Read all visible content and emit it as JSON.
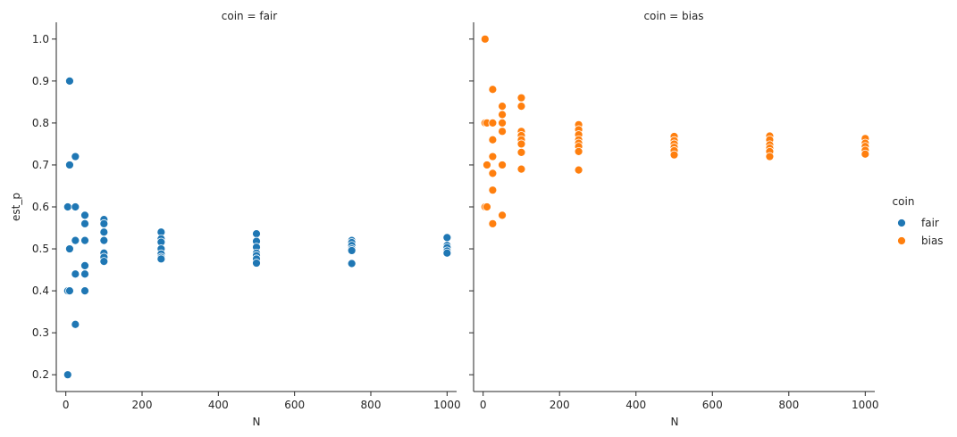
{
  "chart_data": {
    "type": "scatter",
    "x_label": "N",
    "y_label": "est_p",
    "xlim": [
      -25,
      1025
    ],
    "ylim": [
      0.16,
      1.04
    ],
    "x_ticks": [
      0,
      200,
      400,
      600,
      800,
      1000
    ],
    "y_ticks": [
      0.2,
      0.3,
      0.4,
      0.5,
      0.6,
      0.7,
      0.8,
      0.9,
      1.0
    ],
    "x_tick_labels": [
      "0",
      "200",
      "400",
      "600",
      "800",
      "1000"
    ],
    "y_tick_labels": [
      "0.2",
      "0.3",
      "0.4",
      "0.5",
      "0.6",
      "0.7",
      "0.8",
      "0.9",
      "1.0"
    ],
    "grid": false,
    "legend": {
      "title": "coin",
      "placement": "right",
      "entries": [
        {
          "label": "fair",
          "color": "#1f77b4"
        },
        {
          "label": "bias",
          "color": "#ff7f0e"
        }
      ]
    },
    "panels": [
      {
        "title": "coin = fair",
        "series": "fair",
        "color": "#1f77b4",
        "points": [
          [
            5,
            0.2
          ],
          [
            5,
            0.4
          ],
          [
            5,
            0.6
          ],
          [
            5,
            0.4
          ],
          [
            10,
            0.9
          ],
          [
            10,
            0.7
          ],
          [
            10,
            0.5
          ],
          [
            10,
            0.4
          ],
          [
            25,
            0.72
          ],
          [
            25,
            0.6
          ],
          [
            25,
            0.52
          ],
          [
            25,
            0.44
          ],
          [
            25,
            0.32
          ],
          [
            50,
            0.58
          ],
          [
            50,
            0.56
          ],
          [
            50,
            0.52
          ],
          [
            50,
            0.46
          ],
          [
            50,
            0.44
          ],
          [
            50,
            0.4
          ],
          [
            100,
            0.57
          ],
          [
            100,
            0.56
          ],
          [
            100,
            0.54
          ],
          [
            100,
            0.52
          ],
          [
            100,
            0.49
          ],
          [
            100,
            0.48
          ],
          [
            100,
            0.47
          ],
          [
            250,
            0.54
          ],
          [
            250,
            0.524
          ],
          [
            250,
            0.516
          ],
          [
            250,
            0.5
          ],
          [
            250,
            0.488
          ],
          [
            250,
            0.48
          ],
          [
            250,
            0.476
          ],
          [
            500,
            0.536
          ],
          [
            500,
            0.518
          ],
          [
            500,
            0.504
          ],
          [
            500,
            0.49
          ],
          [
            500,
            0.484
          ],
          [
            500,
            0.476
          ],
          [
            500,
            0.466
          ],
          [
            750,
            0.52
          ],
          [
            750,
            0.515
          ],
          [
            750,
            0.508
          ],
          [
            750,
            0.5
          ],
          [
            750,
            0.496
          ],
          [
            750,
            0.465
          ],
          [
            1000,
            0.527
          ],
          [
            1000,
            0.508
          ],
          [
            1000,
            0.503
          ],
          [
            1000,
            0.495
          ],
          [
            1000,
            0.49
          ]
        ]
      },
      {
        "title": "coin = bias",
        "series": "bias",
        "color": "#ff7f0e",
        "points": [
          [
            5,
            1.0
          ],
          [
            5,
            0.8
          ],
          [
            5,
            0.6
          ],
          [
            10,
            0.8
          ],
          [
            10,
            0.7
          ],
          [
            10,
            0.6
          ],
          [
            25,
            0.88
          ],
          [
            25,
            0.8
          ],
          [
            25,
            0.76
          ],
          [
            25,
            0.72
          ],
          [
            25,
            0.68
          ],
          [
            25,
            0.64
          ],
          [
            25,
            0.56
          ],
          [
            50,
            0.84
          ],
          [
            50,
            0.82
          ],
          [
            50,
            0.8
          ],
          [
            50,
            0.78
          ],
          [
            50,
            0.7
          ],
          [
            50,
            0.58
          ],
          [
            100,
            0.86
          ],
          [
            100,
            0.84
          ],
          [
            100,
            0.78
          ],
          [
            100,
            0.77
          ],
          [
            100,
            0.76
          ],
          [
            100,
            0.75
          ],
          [
            100,
            0.73
          ],
          [
            100,
            0.69
          ],
          [
            250,
            0.796
          ],
          [
            250,
            0.784
          ],
          [
            250,
            0.772
          ],
          [
            250,
            0.76
          ],
          [
            250,
            0.752
          ],
          [
            250,
            0.744
          ],
          [
            250,
            0.732
          ],
          [
            250,
            0.688
          ],
          [
            500,
            0.768
          ],
          [
            500,
            0.758
          ],
          [
            500,
            0.75
          ],
          [
            500,
            0.742
          ],
          [
            500,
            0.734
          ],
          [
            500,
            0.724
          ],
          [
            750,
            0.769
          ],
          [
            750,
            0.76
          ],
          [
            750,
            0.748
          ],
          [
            750,
            0.74
          ],
          [
            750,
            0.732
          ],
          [
            750,
            0.72
          ],
          [
            1000,
            0.763
          ],
          [
            1000,
            0.752
          ],
          [
            1000,
            0.744
          ],
          [
            1000,
            0.735
          ],
          [
            1000,
            0.726
          ]
        ]
      }
    ]
  }
}
